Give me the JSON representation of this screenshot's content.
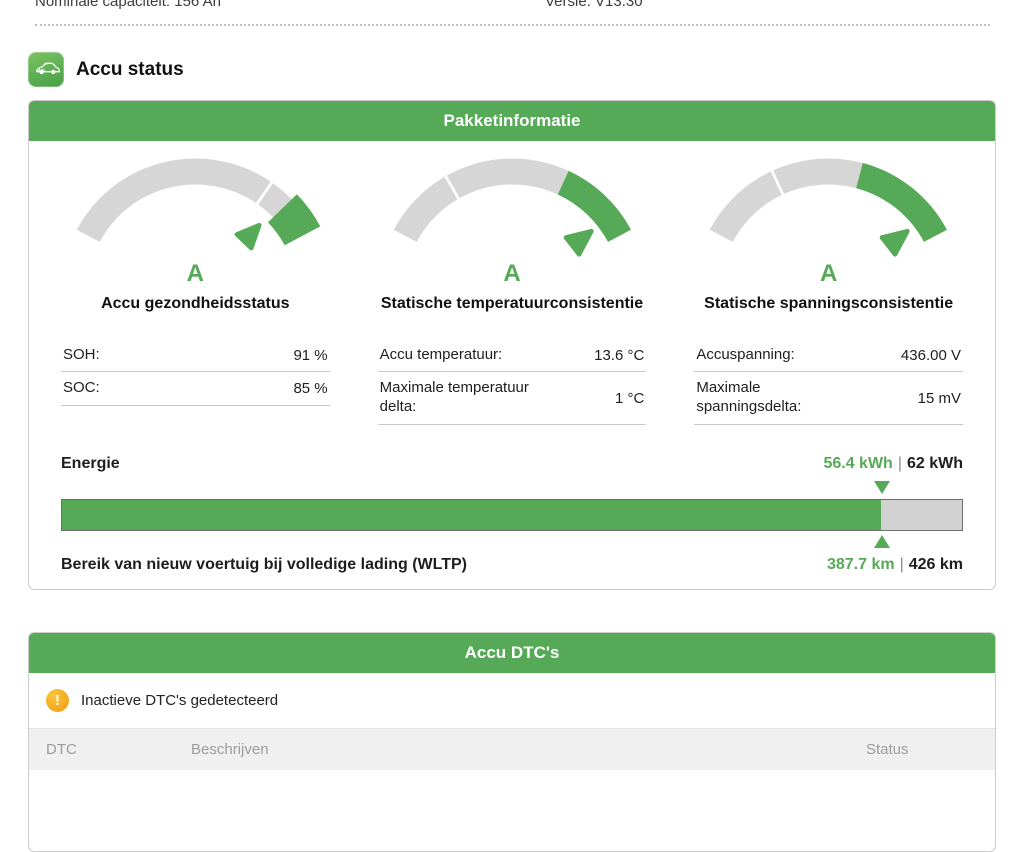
{
  "meta": {
    "capacity": "Nominale capaciteit: 156 Ah",
    "version": "Versie: V13.30"
  },
  "page": {
    "title": "Accu status",
    "app_icon": "ev-car-icon"
  },
  "colors": {
    "green": "#56aa57",
    "gauge_gray": "#d6d6d6",
    "warning_orange": "#f3a51f"
  },
  "pack_info": {
    "header": "Pakketinformatie",
    "gauges": [
      {
        "label": "Accu gezondheidsstatus",
        "grade": "A",
        "divider": 0.78,
        "green_start": 0.87,
        "green_end": 1.0,
        "pointer": 0.85,
        "enlarged": true
      },
      {
        "label": "Statische temperatuurconsistentie",
        "grade": "A",
        "divider": 0.26,
        "green_start": 0.7,
        "green_end": 1.0,
        "pointer": 0.92,
        "enlarged": false
      },
      {
        "label": "Statische spanningsconsistentie",
        "grade": "A",
        "divider": 0.3,
        "green_start": 0.62,
        "green_end": 1.0,
        "pointer": 0.92,
        "enlarged": false
      }
    ],
    "tables": [
      [
        {
          "label": "SOH:",
          "value": "91 %"
        },
        {
          "label": "SOC:",
          "value": "85 %"
        }
      ],
      [
        {
          "label": "Accu temperatuur:",
          "value": "13.6 °C"
        },
        {
          "label": "Maximale temperatuur delta:",
          "value": "1 °C"
        }
      ],
      [
        {
          "label": "Accuspanning:",
          "value": "436.00 V"
        },
        {
          "label": "Maximale spanningsdelta:",
          "value": "15 mV"
        }
      ]
    ],
    "energy": {
      "label": "Energie",
      "current": "56.4 kWh",
      "separator": "|",
      "max": "62 kWh",
      "percent": 91,
      "range_label": "Bereik van nieuw voertuig bij volledige lading (WLTP)",
      "range_current": "387.7 km",
      "range_max": "426 km"
    }
  },
  "dtc": {
    "header": "Accu DTC's",
    "notice": "Inactieve DTC's gedetecteerd",
    "columns": [
      "DTC",
      "Beschrijven",
      "Status"
    ]
  }
}
